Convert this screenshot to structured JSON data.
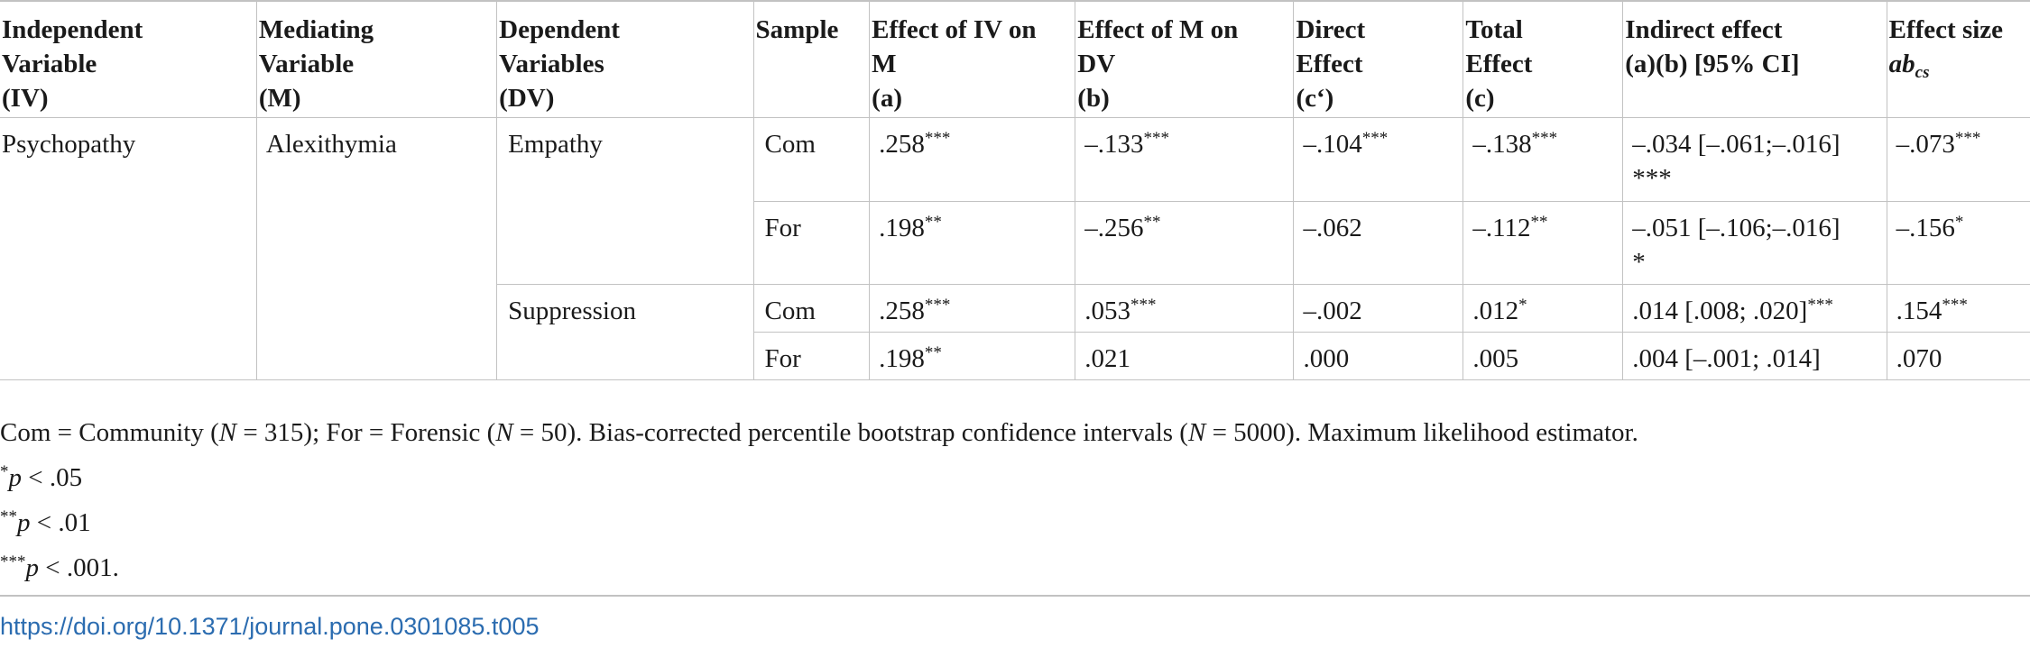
{
  "table": {
    "headers": [
      {
        "line1": "Independent",
        "line2": "Variable",
        "line3": "(IV)"
      },
      {
        "line1": "Mediating",
        "line2": "Variable",
        "line3": "(M)"
      },
      {
        "line1": "Dependent",
        "line2": "Variables",
        "line3": "(DV)"
      },
      {
        "line1": "Sample",
        "line2": "",
        "line3": ""
      },
      {
        "line1": "Effect of IV on",
        "line2": "M",
        "line3": "(a)"
      },
      {
        "line1": "Effect of M on",
        "line2": "DV",
        "line3": "(b)"
      },
      {
        "line1": "Direct",
        "line2": "Effect",
        "line3": "(c‘)"
      },
      {
        "line1": "Total",
        "line2": "Effect",
        "line3": "(c)"
      },
      {
        "line1": "Indirect effect",
        "line2": "(a)(b) [95% CI]",
        "line3": ""
      },
      {
        "line1": "Effect size",
        "line2_base": "ab",
        "line2_sub": "cs"
      }
    ],
    "iv": "Psychopathy",
    "m": "Alexithymia",
    "dv": [
      "Empathy",
      "Suppression"
    ],
    "rows": [
      {
        "sample": "Com",
        "a": ".258",
        "a_sig": "***",
        "b": "–.133",
        "b_sig": "***",
        "direct": "–.104",
        "direct_sig": "***",
        "total": "–.138",
        "total_sig": "***",
        "indirect": "–.034 [–.061;–.016]",
        "indirect_sig": "***",
        "es": "–.073",
        "es_sig": "***"
      },
      {
        "sample": "For",
        "a": ".198",
        "a_sig": "**",
        "b": "–.256",
        "b_sig": "**",
        "direct": "–.062",
        "direct_sig": "",
        "total": "–.112",
        "total_sig": "**",
        "indirect": "–.051 [–.106;–.016]",
        "indirect_sig": "*",
        "es": "–.156",
        "es_sig": "*"
      },
      {
        "sample": "Com",
        "a": ".258",
        "a_sig": "***",
        "b": ".053",
        "b_sig": "***",
        "direct": "–.002",
        "direct_sig": "",
        "total": ".012",
        "total_sig": "*",
        "indirect": ".014 [.008; .020]",
        "indirect_sig": "***",
        "es": ".154",
        "es_sig": "***"
      },
      {
        "sample": "For",
        "a": ".198",
        "a_sig": "**",
        "b": ".021",
        "b_sig": "",
        "direct": ".000",
        "direct_sig": "",
        "total": ".005",
        "total_sig": "",
        "indirect": ".004 [–.001; .014]",
        "indirect_sig": "",
        "es": ".070",
        "es_sig": ""
      }
    ]
  },
  "notes": {
    "line1_a": "Com = Community (",
    "line1_n1": "N",
    "line1_b": " = 315); For = Forensic (",
    "line1_n2": "N",
    "line1_c": " = 50). Bias-corrected percentile bootstrap confidence intervals (",
    "line1_n3": "N",
    "line1_d": " = 5000). Maximum likelihood estimator.",
    "sig1_star": "*",
    "sig1_p": "p",
    "sig1_rest": " < .05",
    "sig2_star": "**",
    "sig2_p": "p",
    "sig2_rest": " < .01",
    "sig3_star": "***",
    "sig3_p": "p",
    "sig3_rest": " < .001."
  },
  "doi": "https://doi.org/10.1371/journal.pone.0301085.t005"
}
